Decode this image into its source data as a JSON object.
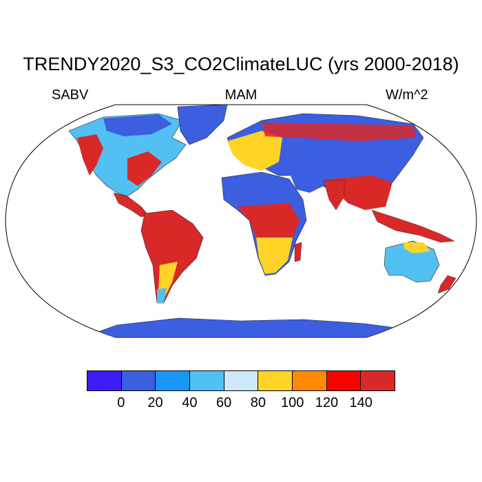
{
  "title": "TRENDY2020_S3_CO2ClimateLUC (yrs 2000-2018)",
  "subtitle_left": "SABV",
  "subtitle_center": "MAM",
  "subtitle_right": "W/m^2",
  "colorbar": {
    "colors": [
      "#3c1cf5",
      "#3c5ee0",
      "#1a96f5",
      "#52c0f2",
      "#cde8f8",
      "#ffd426",
      "#ff8a00",
      "#ff0000",
      "#d92828"
    ],
    "tick_labels": [
      "0",
      "20",
      "40",
      "60",
      "80",
      "100",
      "120",
      "140"
    ]
  },
  "map": {
    "projection": "robinson",
    "ocean_color": "#ffffff",
    "outline_color": "#000000"
  }
}
